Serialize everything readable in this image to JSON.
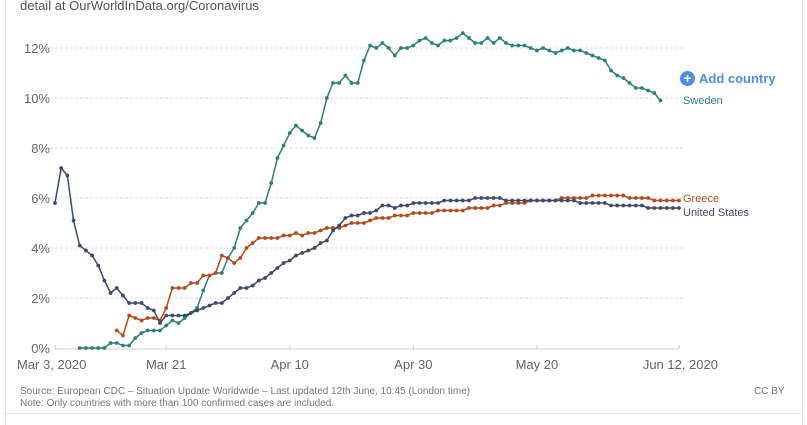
{
  "header": {
    "subtitle": "detail at OurWorldInData.org/Coronavirus"
  },
  "controls": {
    "add_country_label": "Add country",
    "add_country_icon": "plus-circle-icon"
  },
  "footer": {
    "source": "Source: European CDC – Situation Update Worldwide – Last updated 12th June, 10:45 (London time)",
    "note": "Note: Only countries with more than 100 confirmed cases are included.",
    "license": "CC BY"
  },
  "chart_data": {
    "type": "line",
    "title": "",
    "xlabel": "",
    "ylabel": "",
    "x_start": "2020-03-03",
    "x_end": "2020-06-12",
    "x_unit": "day",
    "xlim": [
      0,
      101
    ],
    "ylim": [
      0,
      12
    ],
    "y_unit": "%",
    "grid": true,
    "legend": "right-inline",
    "y_ticks": [
      "0%",
      "2%",
      "4%",
      "6%",
      "8%",
      "10%",
      "12%"
    ],
    "y_tick_values": [
      0,
      2,
      4,
      6,
      8,
      10,
      12
    ],
    "x_ticks": [
      "Mar 3, 2020",
      "Mar 21",
      "Apr 10",
      "Apr 30",
      "May 20",
      "Jun 12, 2020"
    ],
    "x_tick_days": [
      0,
      18,
      38,
      58,
      78,
      101
    ],
    "series": [
      {
        "name": "Sweden",
        "color": "#2d8177",
        "start_day": 4,
        "values": [
          0.0,
          0.0,
          0.0,
          0.0,
          0.0,
          0.2,
          0.2,
          0.1,
          0.1,
          0.4,
          0.6,
          0.7,
          0.7,
          0.7,
          0.9,
          1.1,
          1.0,
          1.2,
          1.4,
          1.6,
          2.3,
          2.9,
          3.0,
          3.0,
          3.6,
          4.0,
          4.8,
          5.1,
          5.4,
          5.8,
          5.8,
          6.6,
          7.6,
          8.1,
          8.6,
          8.9,
          8.7,
          8.5,
          8.4,
          9.0,
          10.0,
          10.6,
          10.6,
          10.9,
          10.6,
          10.6,
          11.5,
          12.1,
          12.0,
          12.2,
          12.0,
          11.7,
          12.0,
          12.0,
          12.1,
          12.3,
          12.4,
          12.2,
          12.1,
          12.3,
          12.3,
          12.4,
          12.6,
          12.4,
          12.2,
          12.2,
          12.4,
          12.2,
          12.4,
          12.2,
          12.1,
          12.1,
          12.1,
          12.0,
          11.9,
          12.0,
          11.9,
          11.8,
          11.9,
          12.0,
          11.9,
          11.9,
          11.8,
          11.7,
          11.6,
          11.5,
          11.1,
          10.9,
          10.8,
          10.6,
          10.4,
          10.4,
          10.3,
          10.2,
          9.9
        ]
      },
      {
        "name": "Greece",
        "color": "#b24a1b",
        "start_day": 10,
        "values": [
          0.7,
          0.5,
          1.3,
          1.2,
          1.1,
          1.2,
          1.2,
          1.1,
          1.6,
          2.4,
          2.4,
          2.4,
          2.6,
          2.6,
          2.9,
          2.9,
          3.0,
          3.7,
          3.6,
          3.4,
          3.6,
          4.0,
          4.2,
          4.4,
          4.4,
          4.4,
          4.4,
          4.5,
          4.5,
          4.6,
          4.5,
          4.6,
          4.6,
          4.7,
          4.8,
          4.8,
          4.8,
          4.9,
          5.0,
          5.0,
          5.0,
          5.1,
          5.2,
          5.2,
          5.2,
          5.3,
          5.3,
          5.3,
          5.4,
          5.4,
          5.4,
          5.4,
          5.5,
          5.5,
          5.5,
          5.5,
          5.5,
          5.6,
          5.6,
          5.6,
          5.6,
          5.7,
          5.7,
          5.8,
          5.8,
          5.8,
          5.8,
          5.9,
          5.9,
          5.9,
          5.9,
          5.9,
          6.0,
          6.0,
          6.0,
          6.0,
          6.0,
          6.1,
          6.1,
          6.1,
          6.1,
          6.1,
          6.1,
          6.0,
          6.0,
          6.0,
          6.0,
          5.9,
          5.9,
          5.9,
          5.9,
          5.9
        ]
      },
      {
        "name": "United States",
        "color": "#3c4a6b",
        "start_day": 0,
        "values": [
          5.8,
          7.2,
          6.9,
          5.1,
          4.1,
          3.9,
          3.7,
          3.3,
          2.7,
          2.2,
          2.4,
          2.1,
          1.8,
          1.8,
          1.8,
          1.6,
          1.5,
          1.0,
          1.3,
          1.3,
          1.3,
          1.3,
          1.4,
          1.5,
          1.6,
          1.7,
          1.8,
          1.8,
          2.0,
          2.2,
          2.4,
          2.4,
          2.5,
          2.7,
          2.8,
          3.0,
          3.2,
          3.4,
          3.5,
          3.7,
          3.8,
          3.9,
          4.0,
          4.2,
          4.3,
          4.7,
          4.9,
          5.2,
          5.3,
          5.3,
          5.4,
          5.4,
          5.5,
          5.7,
          5.7,
          5.6,
          5.7,
          5.7,
          5.8,
          5.8,
          5.8,
          5.8,
          5.8,
          5.9,
          5.9,
          5.9,
          5.9,
          5.9,
          6.0,
          6.0,
          6.0,
          6.0,
          6.0,
          5.9,
          5.9,
          5.9,
          5.9,
          5.9,
          5.9,
          5.9,
          5.9,
          5.9,
          5.9,
          5.9,
          5.9,
          5.8,
          5.8,
          5.8,
          5.8,
          5.8,
          5.7,
          5.7,
          5.7,
          5.7,
          5.7,
          5.7,
          5.6,
          5.6,
          5.6,
          5.6,
          5.6,
          5.6
        ]
      }
    ]
  }
}
